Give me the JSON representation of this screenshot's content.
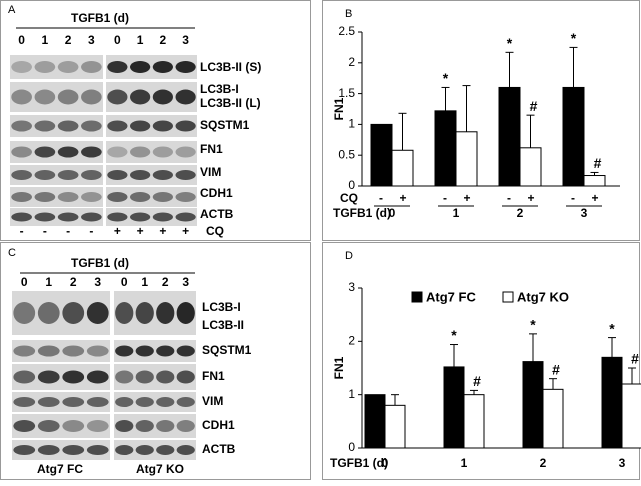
{
  "panels": [
    "A",
    "B",
    "C",
    "D"
  ],
  "blot_a": {
    "title": "TGFB1 (d)",
    "lanes": [
      "0",
      "1",
      "2",
      "3",
      "0",
      "1",
      "2",
      "3"
    ],
    "rows": [
      "LC3B-II (S)",
      "LC3B-I",
      "LC3B-II (L)",
      "SQSTM1",
      "FN1",
      "VIM",
      "CDH1",
      "ACTB"
    ],
    "signs": [
      "-",
      "-",
      "-",
      "-",
      "+",
      "+",
      "+",
      "+"
    ],
    "sign_label": "CQ"
  },
  "blot_c": {
    "title": "TGFB1 (d)",
    "lanes": [
      "0",
      "1",
      "2",
      "3",
      "0",
      "1",
      "2",
      "3"
    ],
    "rows": [
      "LC3B-I",
      "LC3B-II",
      "SQSTM1",
      "FN1",
      "VIM",
      "CDH1",
      "ACTB"
    ],
    "groups": [
      "Atg7 FC",
      "Atg7 KO"
    ]
  },
  "chart_data": [
    {
      "type": "bar",
      "y_label": "FN1",
      "x_label": "TGFB1 (d)",
      "group_label": "CQ",
      "group_signs": [
        "-",
        "+"
      ],
      "categories": [
        "0",
        "1",
        "2",
        "3"
      ],
      "series": [
        {
          "color": "#000000",
          "values": [
            1.0,
            1.22,
            1.6,
            1.6
          ],
          "errors": [
            0,
            0.38,
            0.57,
            0.65
          ],
          "annotations": [
            null,
            "*",
            "*",
            "*"
          ]
        },
        {
          "color": "#ffffff",
          "values": [
            0.58,
            0.88,
            0.62,
            0.17
          ],
          "errors": [
            0.6,
            0.75,
            0.53,
            0.05
          ],
          "annotations": [
            null,
            null,
            "#",
            "#"
          ]
        }
      ],
      "ylim": [
        0,
        2.5
      ],
      "yticks": [
        0,
        0.5,
        1,
        1.5,
        2,
        2.5
      ]
    },
    {
      "type": "bar",
      "y_label": "FN1",
      "x_label": "TGFB1 (d)",
      "categories": [
        "0",
        "1",
        "2",
        "3"
      ],
      "series": [
        {
          "name": "Atg7 FC",
          "color": "#000000",
          "values": [
            1.0,
            1.52,
            1.62,
            1.7
          ],
          "errors": [
            0,
            0.42,
            0.52,
            0.37
          ],
          "annotations": [
            null,
            "*",
            "*",
            "*"
          ]
        },
        {
          "name": "Atg7 KO",
          "color": "#ffffff",
          "values": [
            0.8,
            1.0,
            1.1,
            1.2
          ],
          "errors": [
            0.2,
            0.08,
            0.2,
            0.3
          ],
          "annotations": [
            null,
            "#",
            "#",
            "#"
          ]
        }
      ],
      "ylim": [
        0,
        3
      ],
      "yticks": [
        0,
        1,
        2,
        3
      ]
    }
  ]
}
